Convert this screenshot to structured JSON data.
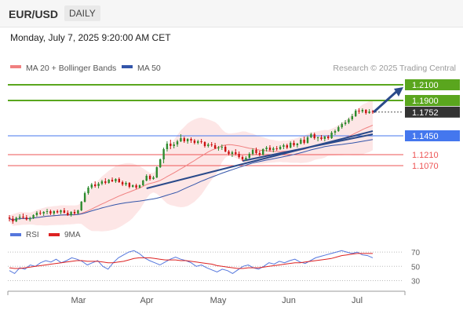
{
  "header": {
    "symbol": "EUR/USD",
    "timeframe": "DAILY"
  },
  "timestamp": "Monday, July 7, 2025 9:20:00 AM CET",
  "legend": {
    "ma20": "MA 20 + Bollinger Bands",
    "ma50": "MA 50",
    "credit": "Research © 2025 Trading Central"
  },
  "rsi_legend": {
    "rsi": "RSI",
    "ma": "9MA"
  },
  "colors": {
    "up": "#2e8b2e",
    "down": "#cc1111",
    "ma20": "#f08080",
    "ma50": "#3355aa",
    "band": "#fde2e2",
    "resistance": "#5aa61e",
    "pivot": "#4477ee",
    "support": "#ee5555",
    "trend": "#2a4a8a",
    "rsi": "#5577dd",
    "rsi_ma": "#dd2222"
  },
  "chart_data": [
    {
      "type": "candlestick",
      "title": "",
      "x_tick_labels": [
        "Mar",
        "Apr",
        "May",
        "Jun",
        "Jul"
      ],
      "y_range": [
        1.02,
        1.22
      ],
      "ohlc": [
        [
          1.041,
          1.044,
          1.036,
          1.0395
        ],
        [
          1.0395,
          1.043,
          1.033,
          1.036
        ],
        [
          1.036,
          1.042,
          1.035,
          1.0405
        ],
        [
          1.0405,
          1.045,
          1.038,
          1.042
        ],
        [
          1.042,
          1.046,
          1.039,
          1.041
        ],
        [
          1.041,
          1.044,
          1.037,
          1.0385
        ],
        [
          1.0385,
          1.042,
          1.036,
          1.04
        ],
        [
          1.04,
          1.045,
          1.039,
          1.044
        ],
        [
          1.044,
          1.049,
          1.042,
          1.047
        ],
        [
          1.047,
          1.05,
          1.044,
          1.046
        ],
        [
          1.046,
          1.049,
          1.043,
          1.048
        ],
        [
          1.048,
          1.052,
          1.045,
          1.049
        ],
        [
          1.049,
          1.051,
          1.044,
          1.046
        ],
        [
          1.046,
          1.05,
          1.044,
          1.049
        ],
        [
          1.049,
          1.051,
          1.046,
          1.0475
        ],
        [
          1.0475,
          1.051,
          1.045,
          1.05
        ],
        [
          1.05,
          1.053,
          1.046,
          1.047
        ],
        [
          1.047,
          1.05,
          1.043,
          1.044
        ],
        [
          1.044,
          1.049,
          1.042,
          1.048
        ],
        [
          1.048,
          1.051,
          1.044,
          1.046
        ],
        [
          1.046,
          1.051,
          1.045,
          1.05
        ],
        [
          1.05,
          1.062,
          1.049,
          1.061
        ],
        [
          1.061,
          1.074,
          1.06,
          1.072
        ],
        [
          1.072,
          1.081,
          1.07,
          1.079
        ],
        [
          1.079,
          1.085,
          1.077,
          1.083
        ],
        [
          1.083,
          1.087,
          1.079,
          1.081
        ],
        [
          1.081,
          1.086,
          1.078,
          1.084
        ],
        [
          1.084,
          1.089,
          1.082,
          1.087
        ],
        [
          1.087,
          1.091,
          1.083,
          1.085
        ],
        [
          1.085,
          1.09,
          1.084,
          1.089
        ],
        [
          1.089,
          1.092,
          1.086,
          1.087
        ],
        [
          1.087,
          1.091,
          1.085,
          1.09
        ],
        [
          1.09,
          1.092,
          1.085,
          1.086
        ],
        [
          1.086,
          1.088,
          1.081,
          1.083
        ],
        [
          1.083,
          1.087,
          1.081,
          1.085
        ],
        [
          1.085,
          1.086,
          1.078,
          1.08
        ],
        [
          1.08,
          1.083,
          1.079,
          1.082
        ],
        [
          1.082,
          1.084,
          1.077,
          1.079
        ],
        [
          1.079,
          1.083,
          1.078,
          1.082
        ],
        [
          1.082,
          1.089,
          1.081,
          1.088
        ],
        [
          1.088,
          1.096,
          1.087,
          1.094
        ],
        [
          1.094,
          1.096,
          1.088,
          1.09
        ],
        [
          1.09,
          1.094,
          1.089,
          1.092
        ],
        [
          1.092,
          1.106,
          1.091,
          1.105
        ],
        [
          1.105,
          1.116,
          1.104,
          1.115
        ],
        [
          1.115,
          1.13,
          1.11,
          1.128
        ],
        [
          1.128,
          1.138,
          1.125,
          1.135
        ],
        [
          1.135,
          1.14,
          1.128,
          1.132
        ],
        [
          1.132,
          1.137,
          1.129,
          1.134
        ],
        [
          1.134,
          1.14,
          1.131,
          1.138
        ],
        [
          1.138,
          1.147,
          1.137,
          1.142
        ],
        [
          1.142,
          1.144,
          1.136,
          1.138
        ],
        [
          1.138,
          1.142,
          1.135,
          1.141
        ],
        [
          1.141,
          1.143,
          1.136,
          1.139
        ],
        [
          1.139,
          1.141,
          1.134,
          1.136
        ],
        [
          1.136,
          1.14,
          1.134,
          1.138
        ],
        [
          1.138,
          1.141,
          1.135,
          1.137
        ],
        [
          1.137,
          1.138,
          1.13,
          1.132
        ],
        [
          1.132,
          1.136,
          1.13,
          1.134
        ],
        [
          1.134,
          1.137,
          1.131,
          1.133
        ],
        [
          1.133,
          1.136,
          1.128,
          1.129
        ],
        [
          1.129,
          1.132,
          1.126,
          1.13
        ],
        [
          1.13,
          1.134,
          1.127,
          1.131
        ],
        [
          1.131,
          1.133,
          1.124,
          1.125
        ],
        [
          1.125,
          1.127,
          1.12,
          1.122
        ],
        [
          1.122,
          1.126,
          1.118,
          1.124
        ],
        [
          1.124,
          1.128,
          1.12,
          1.122
        ],
        [
          1.122,
          1.125,
          1.116,
          1.118
        ],
        [
          1.118,
          1.12,
          1.113,
          1.115
        ],
        [
          1.115,
          1.119,
          1.113,
          1.117
        ],
        [
          1.117,
          1.124,
          1.116,
          1.122
        ],
        [
          1.122,
          1.129,
          1.12,
          1.127
        ],
        [
          1.127,
          1.13,
          1.121,
          1.123
        ],
        [
          1.123,
          1.126,
          1.119,
          1.121
        ],
        [
          1.121,
          1.129,
          1.12,
          1.128
        ],
        [
          1.128,
          1.132,
          1.125,
          1.13
        ],
        [
          1.13,
          1.133,
          1.125,
          1.127
        ],
        [
          1.127,
          1.131,
          1.124,
          1.129
        ],
        [
          1.129,
          1.132,
          1.126,
          1.128
        ],
        [
          1.128,
          1.133,
          1.127,
          1.131
        ],
        [
          1.131,
          1.135,
          1.128,
          1.133
        ],
        [
          1.133,
          1.135,
          1.128,
          1.13
        ],
        [
          1.13,
          1.138,
          1.129,
          1.136
        ],
        [
          1.136,
          1.139,
          1.131,
          1.133
        ],
        [
          1.133,
          1.136,
          1.13,
          1.135
        ],
        [
          1.135,
          1.142,
          1.134,
          1.14
        ],
        [
          1.14,
          1.144,
          1.134,
          1.136
        ],
        [
          1.136,
          1.145,
          1.135,
          1.143
        ],
        [
          1.143,
          1.149,
          1.142,
          1.147
        ],
        [
          1.147,
          1.149,
          1.14,
          1.142
        ],
        [
          1.142,
          1.144,
          1.138,
          1.143
        ],
        [
          1.143,
          1.146,
          1.139,
          1.141
        ],
        [
          1.141,
          1.145,
          1.138,
          1.144
        ],
        [
          1.144,
          1.146,
          1.14,
          1.142
        ],
        [
          1.142,
          1.151,
          1.141,
          1.149
        ],
        [
          1.149,
          1.153,
          1.146,
          1.151
        ],
        [
          1.151,
          1.158,
          1.15,
          1.156
        ],
        [
          1.156,
          1.162,
          1.154,
          1.16
        ],
        [
          1.16,
          1.165,
          1.158,
          1.162
        ],
        [
          1.162,
          1.168,
          1.16,
          1.166
        ],
        [
          1.166,
          1.173,
          1.164,
          1.17
        ],
        [
          1.17,
          1.179,
          1.169,
          1.177
        ],
        [
          1.177,
          1.18,
          1.173,
          1.176
        ],
        [
          1.176,
          1.18,
          1.174,
          1.178
        ],
        [
          1.178,
          1.179,
          1.172,
          1.174
        ],
        [
          1.174,
          1.179,
          1.173,
          1.176
        ],
        [
          1.176,
          1.178,
          1.173,
          1.1752
        ]
      ],
      "levels": [
        {
          "value": 1.21,
          "label": "1.2100",
          "kind": "resistance"
        },
        {
          "value": 1.19,
          "label": "1.1900",
          "kind": "resistance"
        },
        {
          "value": 1.1752,
          "label": "1.1752",
          "kind": "last"
        },
        {
          "value": 1.145,
          "label": "1.1450",
          "kind": "pivot"
        },
        {
          "value": 1.121,
          "label": "1.1210",
          "kind": "support"
        },
        {
          "value": 1.107,
          "label": "1.1070",
          "kind": "support"
        }
      ],
      "projection_arrow": {
        "from": 1.177,
        "to": 1.21
      },
      "grid": false
    },
    {
      "type": "line",
      "title": "",
      "series": [
        {
          "name": "RSI",
          "values": [
            44,
            40,
            48,
            46,
            52,
            50,
            55,
            58,
            56,
            60,
            55,
            58,
            62,
            60,
            57,
            52,
            55,
            58,
            50,
            46,
            55,
            62,
            66,
            70,
            72,
            68,
            62,
            58,
            55,
            52,
            56,
            60,
            63,
            60,
            58,
            55,
            50,
            52,
            48,
            45,
            42,
            46,
            44,
            40,
            45,
            50,
            52,
            48,
            46,
            50,
            55,
            53,
            57,
            55,
            58,
            60,
            56,
            54,
            58,
            62,
            64,
            66,
            68,
            70,
            72,
            70,
            68,
            70,
            66,
            65,
            62
          ]
        },
        {
          "name": "9MA",
          "values": [
            48,
            47,
            47,
            48,
            49,
            50,
            51,
            52,
            53,
            54,
            55,
            56,
            57,
            58,
            58,
            57,
            57,
            57,
            56,
            55,
            55,
            56,
            57,
            59,
            61,
            62,
            62,
            62,
            61,
            60,
            59,
            59,
            59,
            58,
            58,
            57,
            56,
            55,
            54,
            53,
            51,
            50,
            49,
            48,
            47,
            47,
            48,
            48,
            48,
            49,
            50,
            51,
            52,
            53,
            54,
            55,
            55,
            56,
            57,
            58,
            59,
            60,
            61,
            63,
            65,
            66,
            67,
            68,
            68,
            68,
            68
          ]
        }
      ],
      "y_range": [
        25,
        80
      ],
      "ytick_labels": [
        "70",
        "50",
        "30"
      ],
      "grid": true
    }
  ]
}
